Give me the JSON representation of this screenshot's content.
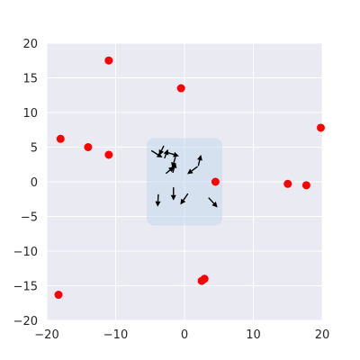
{
  "chart_data": {
    "type": "scatter",
    "xlim": [
      -20,
      20
    ],
    "ylim": [
      -20,
      20
    ],
    "grid": true,
    "xticks": [
      -20,
      -10,
      0,
      10,
      20
    ],
    "yticks": [
      -20,
      -15,
      -10,
      -5,
      0,
      5,
      10,
      15,
      20
    ],
    "points": [
      {
        "x": -11,
        "y": 17.5
      },
      {
        "x": -0.5,
        "y": 13.5
      },
      {
        "x": -18,
        "y": 6.2
      },
      {
        "x": -14,
        "y": 5
      },
      {
        "x": -11,
        "y": 3.9
      },
      {
        "x": 4.5,
        "y": 0
      },
      {
        "x": 15,
        "y": -0.3
      },
      {
        "x": 17.7,
        "y": -0.5
      },
      {
        "x": 19.8,
        "y": 7.8
      },
      {
        "x": -18.3,
        "y": -16.3
      },
      {
        "x": 2.5,
        "y": -14.3
      },
      {
        "x": 2.9,
        "y": -14
      }
    ],
    "region": {
      "x0": -5.5,
      "x1": 5.5,
      "y0": -6.3,
      "y1": 6.3
    },
    "arrows": [
      {
        "x": -3.0,
        "y": 5.2,
        "dx": -0.7,
        "dy": -1.4
      },
      {
        "x": -2.9,
        "y": 3.4,
        "dx": 0.5,
        "dy": 1.3
      },
      {
        "x": -4.8,
        "y": 4.5,
        "dx": 1.6,
        "dy": -1.0
      },
      {
        "x": -2.4,
        "y": 4.2,
        "dx": 1.6,
        "dy": -0.5
      },
      {
        "x": -2.7,
        "y": 1.2,
        "dx": 1.2,
        "dy": 1.0
      },
      {
        "x": -1.7,
        "y": 1.3,
        "dx": 0.4,
        "dy": 1.5
      },
      {
        "x": -1.3,
        "y": 3.6,
        "dx": -0.5,
        "dy": -1.6
      },
      {
        "x": 1.9,
        "y": 2.2,
        "dx": -1.5,
        "dy": -1.1
      },
      {
        "x": 2.0,
        "y": 2.3,
        "dx": 0.4,
        "dy": 1.6
      },
      {
        "x": -1.6,
        "y": -0.8,
        "dx": 0.0,
        "dy": -1.9
      },
      {
        "x": -3.8,
        "y": -1.8,
        "dx": -0.1,
        "dy": -1.8
      },
      {
        "x": 0.5,
        "y": -1.7,
        "dx": -1.1,
        "dy": -1.6
      },
      {
        "x": 3.5,
        "y": -2.3,
        "dx": 1.3,
        "dy": -1.4
      }
    ],
    "colors": {
      "background": "#eaeaf2",
      "grid": "#ffffff",
      "points": "#ff0000",
      "arrows": "#000000",
      "region": "#c4d8ec"
    }
  }
}
